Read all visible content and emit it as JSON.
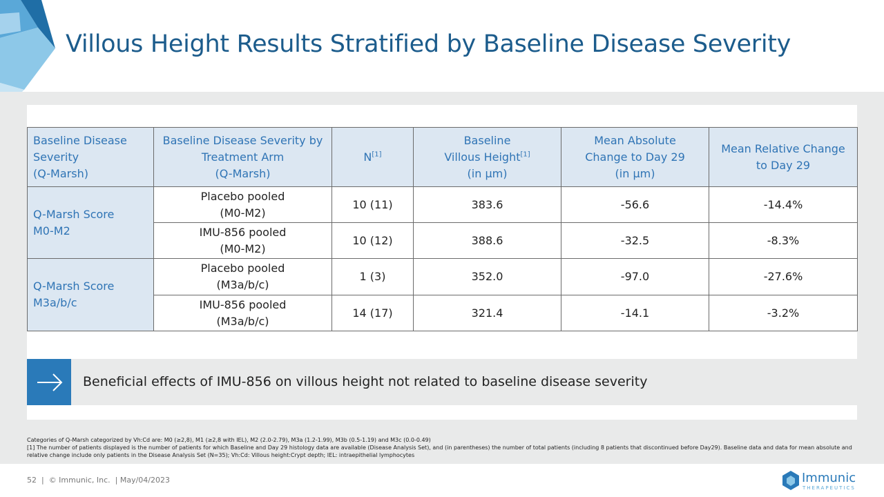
{
  "header": {
    "title": "Villous Height Results Stratified by Baseline Disease Severity"
  },
  "table": {
    "headers": [
      {
        "lines": [
          "Baseline Disease",
          "Severity",
          "(Q-Marsh)"
        ]
      },
      {
        "lines": [
          "Baseline Disease Severity by",
          "Treatment Arm",
          "(Q-Marsh)"
        ]
      },
      {
        "lines": [
          {
            "text": "N",
            "sup": "[1]"
          }
        ]
      },
      {
        "lines": [
          "Baseline",
          {
            "text": "Villous Height",
            "sup": "[1]"
          },
          "(in µm)"
        ]
      },
      {
        "lines": [
          "Mean Absolute",
          "Change to Day 29",
          "(in µm)"
        ]
      },
      {
        "lines": [
          "Mean Relative Change",
          "to Day 29"
        ]
      }
    ],
    "groups": [
      {
        "label": [
          "Q-Marsh Score",
          "M0-M2"
        ],
        "rows": [
          {
            "arm": [
              "Placebo pooled",
              "(M0-M2)"
            ],
            "cells": [
              "10 (11)",
              "383.6",
              "-56.6",
              "-14.4%"
            ]
          },
          {
            "arm": [
              "IMU-856 pooled",
              "(M0-M2)"
            ],
            "cells": [
              "10 (12)",
              "388.6",
              "-32.5",
              "-8.3%"
            ]
          }
        ]
      },
      {
        "label": [
          "Q-Marsh Score",
          "M3a/b/c"
        ],
        "rows": [
          {
            "arm": [
              "Placebo pooled",
              "(M3a/b/c)"
            ],
            "cells": [
              "1 (3)",
              "352.0",
              "-97.0",
              "-27.6%"
            ]
          },
          {
            "arm": [
              "IMU-856 pooled",
              "(M3a/b/c)"
            ],
            "cells": [
              "14 (17)",
              "321.4",
              "-14.1",
              "-3.2%"
            ]
          }
        ]
      }
    ]
  },
  "callout": {
    "text": "Beneficial effects of IMU-856 on villous height not related to baseline disease severity"
  },
  "footnotes": [
    "Categories of Q-Marsh categorized by Vh:Cd are: M0 (≥2,8), M1 (≥2,8 with IEL), M2 (2.0-2.79), M3a (1.2-1.99), M3b (0.5-1.19) and M3c (0.0-0.49)",
    "[1] The number of patients displayed is the number of patients for which Baseline and Day 29 histology data are available (Disease Analysis Set), and (in parentheses) the number of total patients (including 8 patients that discontinued before Day29). Baseline data and data for mean absolute and relative change include only patients in the Disease Analysis Set (N=35); Vh:Cd: Villous height:Crypt depth; IEL: intraepithelial lymphocytes"
  ],
  "footer": {
    "text": "52  |  © Immunic, Inc.  | May/04/2023",
    "logo": "Immunic",
    "logo_sub": "THERAPEUTICS"
  }
}
